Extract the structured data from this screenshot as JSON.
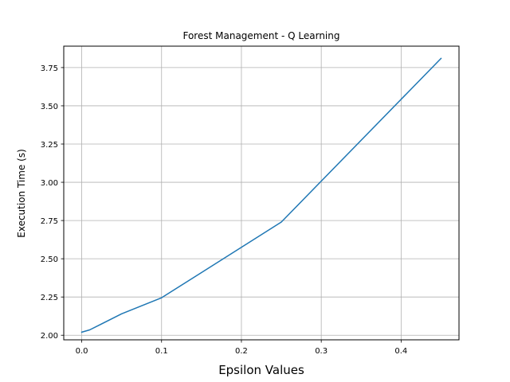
{
  "chart_data": {
    "type": "line",
    "title": "Forest Management - Q Learning",
    "xlabel": "Epsilon Values",
    "ylabel": "Execution Time (s)",
    "xlim": [
      -0.0225,
      0.4725
    ],
    "ylim": [
      1.97,
      3.89
    ],
    "xticks": [
      0.0,
      0.1,
      0.2,
      0.3,
      0.4
    ],
    "xtick_labels": [
      "0.0",
      "0.1",
      "0.2",
      "0.3",
      "0.4"
    ],
    "yticks": [
      2.0,
      2.25,
      2.5,
      2.75,
      3.0,
      3.25,
      3.5,
      3.75
    ],
    "ytick_labels": [
      "2.00",
      "2.25",
      "2.50",
      "2.75",
      "3.00",
      "3.25",
      "3.50",
      "3.75"
    ],
    "grid": true,
    "series": [
      {
        "color": "#1f77b4",
        "x": [
          0.0,
          0.01,
          0.05,
          0.1,
          0.25,
          0.45
        ],
        "y": [
          2.02,
          2.035,
          2.14,
          2.245,
          2.74,
          3.81
        ]
      }
    ]
  }
}
